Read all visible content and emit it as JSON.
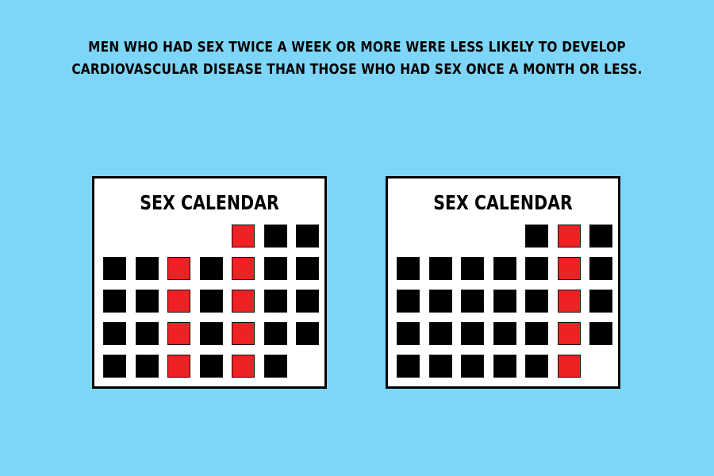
{
  "headline": {
    "line1": "MEN WHO HAD SEX TWICE A WEEK OR MORE WERE LESS LIKELY TO DEVELOP",
    "line2": "CARDIOVASCULAR DISEASE THAN THOSE WHO HAD SEX ONCE A MONTH OR LESS."
  },
  "colors": {
    "background": "#7dd6f8",
    "day": "#000000",
    "sex_day": "#ee2125"
  },
  "calendars": [
    {
      "title": "SEX CALENDAR",
      "weeks": [
        [
          null,
          null,
          null,
          null,
          1,
          0,
          0
        ],
        [
          0,
          0,
          1,
          0,
          1,
          0,
          0
        ],
        [
          0,
          0,
          1,
          0,
          1,
          0,
          0
        ],
        [
          0,
          0,
          1,
          0,
          1,
          0,
          0
        ],
        [
          0,
          0,
          1,
          0,
          1,
          0,
          null
        ]
      ]
    },
    {
      "title": "SEX CALENDAR",
      "weeks": [
        [
          null,
          null,
          null,
          null,
          0,
          1,
          0
        ],
        [
          0,
          0,
          0,
          0,
          0,
          1,
          0
        ],
        [
          0,
          0,
          0,
          0,
          0,
          1,
          0
        ],
        [
          0,
          0,
          0,
          0,
          0,
          1,
          0
        ],
        [
          0,
          0,
          0,
          0,
          0,
          1,
          null
        ]
      ]
    }
  ]
}
